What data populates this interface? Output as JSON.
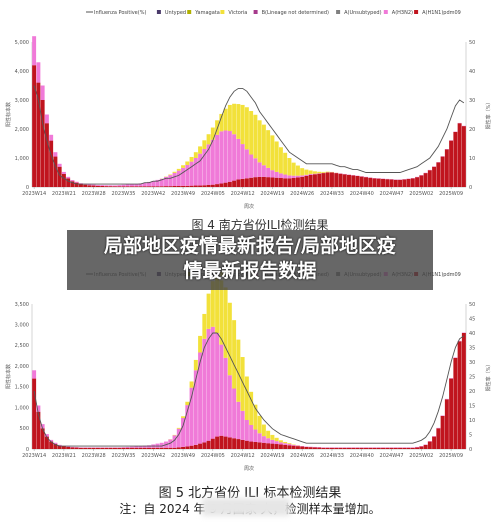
{
  "banner": {
    "line1": "局部地区疫情最新报告/局部地区疫",
    "line2": "情最新报告数据"
  },
  "figure4_partial_caption": "图 4  南方省份ILI检测结果",
  "figure5_caption": "图 5    北方省份 ILI 标本检测结果",
  "figure5_note": "注：自 2024 年 9 月国家                      大，检测样本量增加。",
  "colors": {
    "positive_line": "#555555",
    "untyped": "#4a3a6a",
    "yamagata": "#b0b000",
    "victoria": "#f2e13a",
    "b_lineage_not_determined": "#a63a8c",
    "a_unsubtyped": "#808080",
    "a_h3n2": "#f07ad8",
    "a_h1n1pdm09": "#c0141e"
  },
  "chart_data": [
    {
      "type": "bar",
      "stacked": true,
      "title": "",
      "xlabel": "周次",
      "ylabel": "阳性标本数",
      "y2label": "阳性率（%）",
      "ylim": [
        0,
        5000
      ],
      "y2lim": [
        0,
        50
      ],
      "yticks": [
        "0",
        "1,000",
        "2,000",
        "3,000",
        "4,000",
        "5,000"
      ],
      "y2ticks": [
        "0",
        "10",
        "20",
        "30",
        "40",
        "50"
      ],
      "xtick_labels": [
        "2023W14",
        "2023W21",
        "2023W28",
        "2023W35",
        "2023W42",
        "2023W49",
        "2024W05",
        "2024W12",
        "2024W19",
        "2024W26",
        "2024W33",
        "2024W40",
        "2024W47",
        "2025W02",
        "2025W09"
      ],
      "legend_position": "top",
      "legend": [
        "Influenza Positive(%)",
        "Untyped",
        "Yamagata",
        "Victoria",
        "B(Lineage not determined)",
        "A(Unsubtyped)",
        "A(H3N2)",
        "A(H1N1)pdm09"
      ],
      "n_weeks": 102,
      "series": [
        {
          "name": "A(H1N1)pdm09",
          "values": [
            4200,
            3600,
            3000,
            2200,
            1600,
            1050,
            700,
            450,
            300,
            200,
            150,
            100,
            80,
            60,
            50,
            40,
            35,
            30,
            28,
            25,
            25,
            25,
            25,
            25,
            25,
            25,
            25,
            25,
            25,
            25,
            25,
            30,
            30,
            35,
            35,
            40,
            40,
            45,
            50,
            50,
            60,
            70,
            80,
            100,
            120,
            150,
            180,
            220,
            260,
            280,
            300,
            320,
            340,
            350,
            350,
            340,
            330,
            320,
            310,
            300,
            300,
            310,
            330,
            350,
            380,
            420,
            440,
            460,
            480,
            500,
            500,
            480,
            460,
            440,
            420,
            400,
            380,
            360,
            340,
            320,
            300,
            290,
            280,
            270,
            260,
            250,
            250,
            260,
            280,
            300,
            340,
            400,
            480,
            580,
            700,
            850,
            1050,
            1300,
            1600,
            1900,
            2200,
            2100
          ]
        },
        {
          "name": "A(H3N2)",
          "values": [
            1000,
            700,
            500,
            300,
            200,
            150,
            100,
            70,
            50,
            40,
            30,
            30,
            30,
            30,
            30,
            30,
            30,
            30,
            30,
            30,
            40,
            50,
            60,
            70,
            80,
            100,
            120,
            150,
            180,
            220,
            260,
            320,
            380,
            450,
            530,
            620,
            720,
            830,
            950,
            1100,
            1250,
            1400,
            1550,
            1700,
            1800,
            1800,
            1750,
            1600,
            1400,
            1200,
            1000,
            800,
            650,
            500,
            400,
            320,
            250,
            200,
            160,
            130,
            100,
            80,
            60,
            50,
            40,
            30,
            20,
            15,
            10,
            10,
            10,
            10,
            10,
            10,
            10,
            10,
            10,
            10,
            10,
            10,
            10,
            10,
            10,
            10,
            10,
            10,
            10,
            10,
            10,
            10,
            10,
            10,
            10,
            10,
            10,
            10,
            10,
            10,
            10,
            10,
            10,
            10
          ]
        },
        {
          "name": "Victoria",
          "values": [
            0,
            0,
            0,
            0,
            0,
            0,
            0,
            0,
            0,
            0,
            0,
            0,
            0,
            0,
            0,
            0,
            0,
            0,
            0,
            0,
            0,
            0,
            0,
            0,
            0,
            0,
            0,
            0,
            0,
            0,
            5,
            10,
            20,
            40,
            60,
            90,
            120,
            160,
            200,
            250,
            300,
            350,
            420,
            500,
            600,
            750,
            900,
            1050,
            1200,
            1350,
            1450,
            1500,
            1500,
            1450,
            1400,
            1300,
            1200,
            1050,
            900,
            750,
            600,
            450,
            350,
            250,
            180,
            120,
            80,
            50,
            30,
            20,
            10,
            5,
            0,
            0,
            0,
            0,
            0,
            0,
            0,
            0,
            0,
            0,
            0,
            0,
            0,
            0,
            0,
            0,
            0,
            0,
            0,
            0,
            0,
            0,
            0,
            0,
            0,
            0,
            0,
            0,
            0,
            0
          ]
        }
      ],
      "positive_rate_percent": [
        35,
        30,
        22,
        16,
        11,
        7,
        4,
        3,
        2,
        1.5,
        1,
        1,
        1,
        1,
        1,
        1,
        1,
        1,
        1,
        1,
        1,
        1,
        1,
        1,
        1,
        1,
        1.5,
        1.5,
        2,
        2,
        2.5,
        3,
        3,
        3.5,
        4,
        5,
        6,
        7,
        8,
        9,
        11,
        13,
        16,
        20,
        24,
        28,
        31,
        33,
        34,
        34,
        33,
        31,
        29,
        26,
        24,
        22,
        20,
        18,
        16,
        14,
        12,
        11,
        10,
        9,
        8,
        8,
        8,
        8,
        8,
        8,
        8,
        7.5,
        7,
        7,
        6.5,
        6,
        6,
        5.5,
        5,
        5,
        5,
        5,
        5,
        5,
        5,
        5,
        5,
        5.5,
        6,
        6.5,
        7,
        8,
        9,
        10,
        12,
        14,
        17,
        20,
        24,
        28,
        30,
        29
      ]
    },
    {
      "type": "bar",
      "stacked": true,
      "title": "",
      "xlabel": "周次",
      "ylabel": "阳性标本数",
      "y2label": "阳性率（%）",
      "ylim": [
        0,
        3500
      ],
      "y2lim": [
        0,
        50
      ],
      "yticks": [
        "0",
        "500",
        "1,000",
        "1,500",
        "2,000",
        "2,500",
        "3,000",
        "3,500"
      ],
      "y2ticks": [
        "0",
        "5",
        "10",
        "15",
        "20",
        "25",
        "30",
        "35",
        "40",
        "45",
        "50"
      ],
      "xtick_labels": [
        "2023W14",
        "2023W21",
        "2023W28",
        "2023W35",
        "2023W42",
        "2023W49",
        "2024W05",
        "2024W12",
        "2024W19",
        "2024W26",
        "2024W33",
        "2024W40",
        "2024W47",
        "2025W02",
        "2025W09"
      ],
      "legend_position": "top",
      "legend": [
        "Influenza Positive(%)",
        "Untyped",
        "Yamagata",
        "Victoria",
        "B(Lineage not determined)",
        "A(Unsubtyped)",
        "A(H3N2)",
        "A(H1N1)pdm09"
      ],
      "n_weeks": 102,
      "series": [
        {
          "name": "A(H1N1)pdm09",
          "values": [
            1700,
            900,
            500,
            300,
            180,
            120,
            80,
            60,
            50,
            40,
            35,
            30,
            30,
            30,
            30,
            30,
            30,
            30,
            30,
            30,
            30,
            30,
            30,
            30,
            30,
            30,
            30,
            30,
            30,
            30,
            30,
            30,
            30,
            30,
            40,
            50,
            60,
            80,
            100,
            130,
            160,
            200,
            250,
            300,
            320,
            300,
            280,
            260,
            240,
            220,
            200,
            180,
            170,
            160,
            150,
            140,
            130,
            120,
            110,
            100,
            90,
            80,
            70,
            60,
            50,
            45,
            40,
            35,
            30,
            30,
            30,
            30,
            30,
            30,
            30,
            30,
            30,
            30,
            30,
            30,
            30,
            30,
            30,
            30,
            30,
            30,
            30,
            30,
            30,
            30,
            40,
            60,
            100,
            180,
            300,
            500,
            800,
            1200,
            1700,
            2200,
            2600,
            2800
          ]
        },
        {
          "name": "A(H3N2)",
          "values": [
            200,
            150,
            100,
            60,
            40,
            30,
            20,
            15,
            10,
            10,
            10,
            10,
            10,
            10,
            10,
            10,
            10,
            10,
            10,
            10,
            10,
            15,
            20,
            25,
            30,
            40,
            50,
            60,
            80,
            100,
            120,
            150,
            200,
            300,
            450,
            700,
            1000,
            1400,
            1800,
            2200,
            2500,
            2700,
            2700,
            2500,
            2200,
            1900,
            1500,
            1200,
            900,
            700,
            500,
            400,
            300,
            220,
            160,
            120,
            90,
            70,
            50,
            40,
            30,
            20,
            15,
            10,
            10,
            10,
            10,
            10,
            10,
            10,
            10,
            10,
            10,
            10,
            10,
            10,
            10,
            10,
            10,
            10,
            10,
            10,
            10,
            10,
            10,
            10,
            10,
            10,
            10,
            10,
            10,
            10,
            10,
            10,
            10,
            10,
            10,
            10,
            10,
            10,
            10,
            10
          ]
        },
        {
          "name": "Victoria",
          "values": [
            0,
            0,
            0,
            0,
            0,
            0,
            0,
            0,
            0,
            0,
            0,
            0,
            0,
            0,
            0,
            0,
            0,
            0,
            0,
            0,
            0,
            0,
            0,
            0,
            0,
            0,
            0,
            0,
            0,
            0,
            0,
            0,
            5,
            10,
            20,
            40,
            80,
            150,
            250,
            400,
            600,
            850,
            1100,
            1350,
            1550,
            1700,
            1750,
            1650,
            1500,
            1300,
            1050,
            800,
            600,
            420,
            280,
            180,
            120,
            80,
            50,
            30,
            20,
            10,
            5,
            0,
            0,
            0,
            0,
            0,
            0,
            0,
            0,
            0,
            0,
            0,
            0,
            0,
            0,
            0,
            0,
            0,
            0,
            0,
            0,
            0,
            0,
            0,
            0,
            0,
            0,
            0,
            0,
            0,
            0,
            0,
            0,
            0,
            0,
            0,
            0,
            0,
            0,
            0
          ]
        }
      ],
      "positive_rate_percent": [
        20,
        12,
        7,
        4,
        2.5,
        1.5,
        1,
        1,
        1,
        1,
        1,
        1,
        1,
        1,
        1,
        1,
        1,
        1,
        1,
        1,
        1,
        1,
        1,
        1,
        1,
        1,
        1,
        1,
        1,
        1,
        1,
        1.5,
        2,
        3,
        5,
        8,
        13,
        18,
        24,
        30,
        35,
        38,
        40,
        40,
        38,
        35,
        32,
        29,
        26,
        23,
        20,
        17,
        14,
        12,
        10,
        8.5,
        7,
        6,
        5,
        4.5,
        4,
        3.5,
        3,
        2.5,
        2,
        2,
        2,
        2,
        2,
        2,
        2,
        2,
        2,
        2,
        2,
        2,
        2,
        2,
        2,
        2,
        2,
        2,
        2,
        2,
        2,
        2,
        2,
        2,
        2,
        2,
        2.5,
        3,
        4,
        6,
        9,
        13,
        18,
        24,
        30,
        35,
        38,
        39
      ]
    }
  ]
}
